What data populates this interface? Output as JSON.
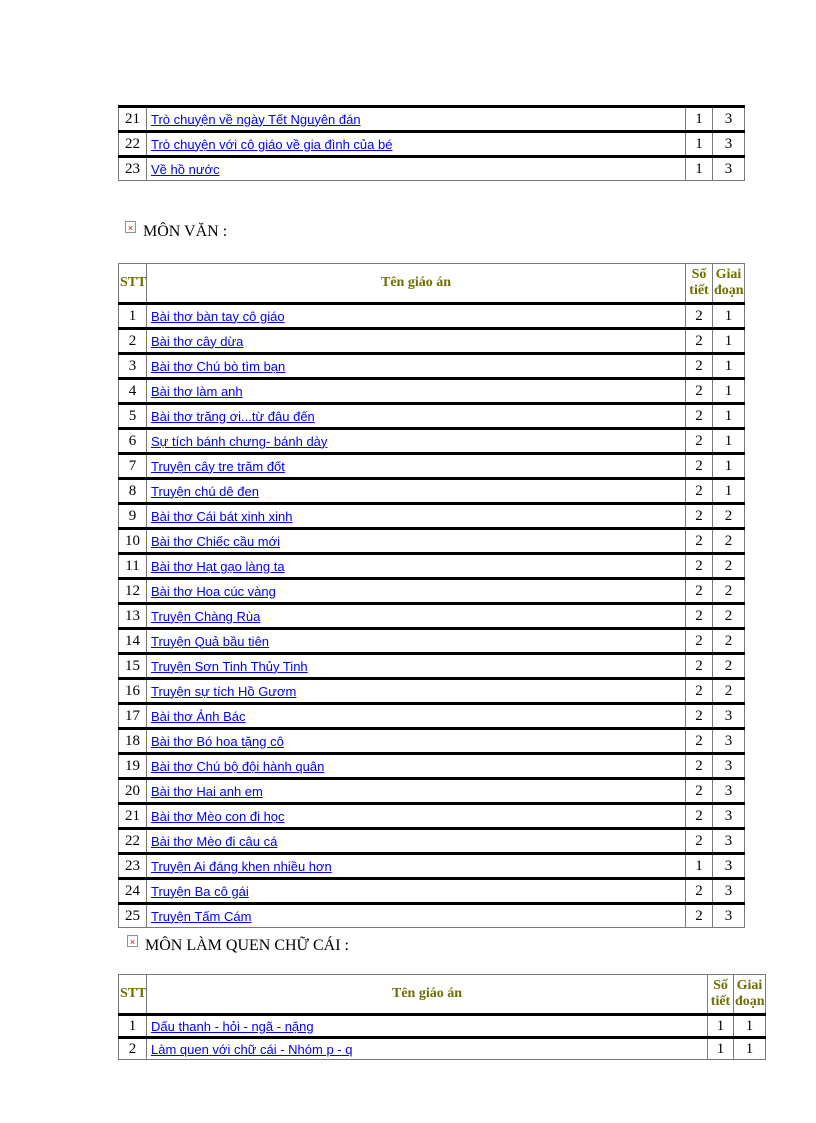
{
  "icons": {
    "broken_image_glyph": "×"
  },
  "sections": [
    {
      "kind": "continuation-table",
      "rows": [
        {
          "stt": "21",
          "name": "Trò chuyện về ngày Tết Nguyên đán",
          "so_tiet": "1",
          "giai_doan": "3"
        },
        {
          "stt": "22",
          "name": "Trò chuyện với cô giáo về gia đình của bé",
          "so_tiet": "1",
          "giai_doan": "3"
        },
        {
          "stt": "23",
          "name": "Về hồ nước",
          "so_tiet": "1",
          "giai_doan": "3"
        }
      ]
    },
    {
      "kind": "subject-table",
      "heading": "MÔN VĂN :",
      "header": {
        "stt": "STT",
        "name": "Tên giáo án",
        "so_tiet": "Số tiết",
        "giai_doan": "Giai đoạn"
      },
      "rows": [
        {
          "stt": "1",
          "name": "Bài thơ bàn tay cô giáo",
          "so_tiet": "2",
          "giai_doan": "1"
        },
        {
          "stt": "2",
          "name": "Bài thơ cây dừa",
          "so_tiet": "2",
          "giai_doan": "1"
        },
        {
          "stt": "3",
          "name": "Bài thơ Chú bò tìm bạn",
          "so_tiet": "2",
          "giai_doan": "1"
        },
        {
          "stt": "4",
          "name": "Bài thơ làm anh",
          "so_tiet": "2",
          "giai_doan": "1"
        },
        {
          "stt": "5",
          "name": "Bài thơ trăng ơi...từ đâu đến",
          "so_tiet": "2",
          "giai_doan": "1"
        },
        {
          "stt": "6",
          "name": "Sự tích bánh chưng- bánh dày",
          "so_tiet": "2",
          "giai_doan": "1"
        },
        {
          "stt": "7",
          "name": "Truyện cây tre trăm đốt",
          "so_tiet": "2",
          "giai_doan": "1"
        },
        {
          "stt": "8",
          "name": "Truyện chú dê đen",
          "so_tiet": "2",
          "giai_doan": "1"
        },
        {
          "stt": "9",
          "name": "Bài thơ Cái bát xinh xinh",
          "so_tiet": "2",
          "giai_doan": "2"
        },
        {
          "stt": "10",
          "name": "Bài thơ Chiếc cầu mới",
          "so_tiet": "2",
          "giai_doan": "2"
        },
        {
          "stt": "11",
          "name": "Bài thơ Hạt gạo làng ta",
          "so_tiet": "2",
          "giai_doan": "2"
        },
        {
          "stt": "12",
          "name": "Bài thơ Hoa cúc vàng",
          "so_tiet": "2",
          "giai_doan": "2"
        },
        {
          "stt": "13",
          "name": "Truyện Chàng Rùa",
          "so_tiet": "2",
          "giai_doan": "2"
        },
        {
          "stt": "14",
          "name": "Truyện Quả bầu tiên",
          "so_tiet": "2",
          "giai_doan": "2"
        },
        {
          "stt": "15",
          "name": "Truyện Sơn Tinh Thủy Tinh",
          "so_tiet": "2",
          "giai_doan": "2"
        },
        {
          "stt": "16",
          "name": "Truyện sự tích Hồ Gươm",
          "so_tiet": "2",
          "giai_doan": "2"
        },
        {
          "stt": "17",
          "name": "Bài thơ Ảnh Bác",
          "so_tiet": "2",
          "giai_doan": "3"
        },
        {
          "stt": "18",
          "name": "Bài thơ Bó hoa tặng cô",
          "so_tiet": "2",
          "giai_doan": "3"
        },
        {
          "stt": "19",
          "name": "Bài thơ Chú bộ đội hành quân",
          "so_tiet": "2",
          "giai_doan": "3"
        },
        {
          "stt": "20",
          "name": "Bài thơ Hai anh em",
          "so_tiet": "2",
          "giai_doan": "3"
        },
        {
          "stt": "21",
          "name": "Bài thơ Mèo con đi học",
          "so_tiet": "2",
          "giai_doan": "3"
        },
        {
          "stt": "22",
          "name": "Bài thơ Mèo đi câu cá",
          "so_tiet": "2",
          "giai_doan": "3"
        },
        {
          "stt": "23",
          "name": "Truyện Ai đáng khen nhiều hơn",
          "so_tiet": "1",
          "giai_doan": "3"
        },
        {
          "stt": "24",
          "name": "Truyện Ba cô gái",
          "so_tiet": "2",
          "giai_doan": "3"
        },
        {
          "stt": "25",
          "name": "Truyện Tấm Cám",
          "so_tiet": "2",
          "giai_doan": "3"
        }
      ]
    },
    {
      "kind": "subject-table",
      "heading": "MÔN LÀM QUEN CHỮ CÁI :",
      "header": {
        "stt": "STT",
        "name": "Tên giáo án",
        "so_tiet": "Số tiết",
        "giai_doan": "Giai đoạn"
      },
      "rows": [
        {
          "stt": "1",
          "name": "Dấu thanh - hỏi - ngã - nặng",
          "so_tiet": "1",
          "giai_doan": "1"
        },
        {
          "stt": "2",
          "name": "Làm quen với chữ cái - Nhóm p - q",
          "so_tiet": "1",
          "giai_doan": "1"
        }
      ]
    }
  ]
}
